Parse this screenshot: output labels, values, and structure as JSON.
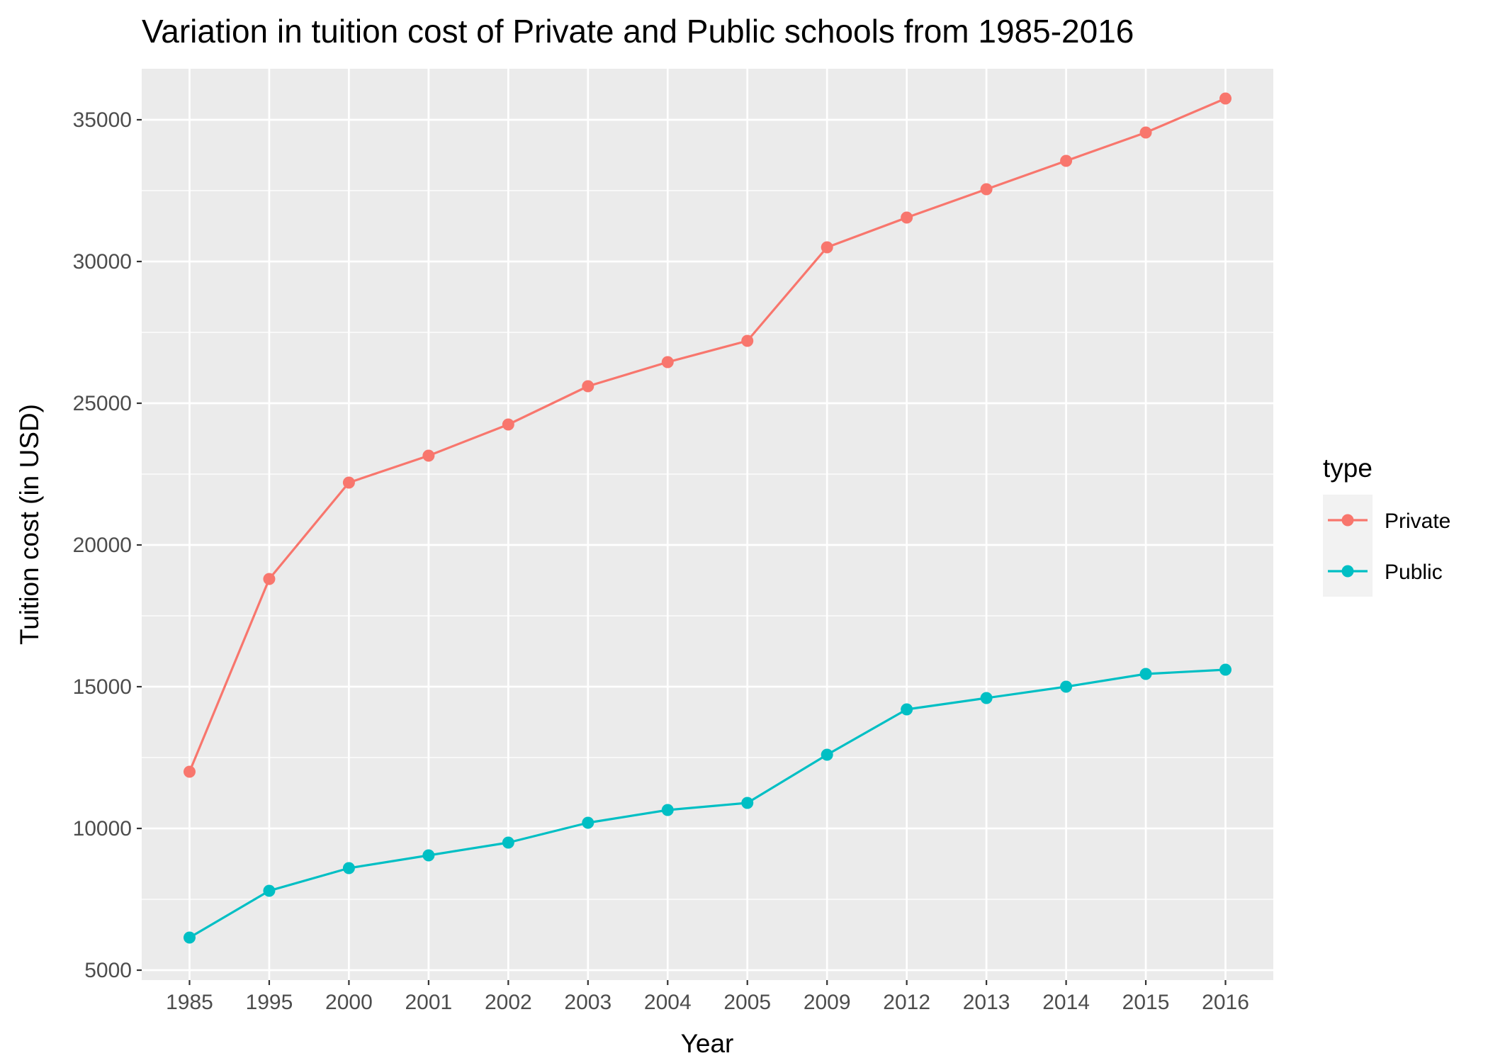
{
  "chart_data": {
    "type": "line",
    "title": "Variation in tuition cost of Private and Public schools from 1985-2016",
    "xlabel": "Year",
    "ylabel": "Tuition cost (in USD)",
    "categories": [
      "1985",
      "1995",
      "2000",
      "2001",
      "2002",
      "2003",
      "2004",
      "2005",
      "2009",
      "2012",
      "2013",
      "2014",
      "2015",
      "2016"
    ],
    "y_ticks": [
      "5000",
      "10000",
      "15000",
      "20000",
      "25000",
      "30000",
      "35000"
    ],
    "ylim": [
      4650,
      36800
    ],
    "grid": true,
    "legend": {
      "title": "type",
      "position": "right"
    },
    "series": [
      {
        "name": "Private",
        "color": "#F8766D",
        "values": [
          12000,
          18800,
          22200,
          23150,
          24250,
          25600,
          26450,
          27200,
          30500,
          31550,
          32550,
          33550,
          34550,
          35750
        ]
      },
      {
        "name": "Public",
        "color": "#00BFC4",
        "values": [
          6150,
          7800,
          8600,
          9050,
          9500,
          10200,
          10650,
          10900,
          12600,
          14200,
          14600,
          15000,
          15450,
          15600
        ]
      }
    ],
    "style": {
      "panel_background": "#EBEBEB",
      "grid_color": "#FFFFFF",
      "legend_key_background": "#F2F2F2"
    }
  }
}
